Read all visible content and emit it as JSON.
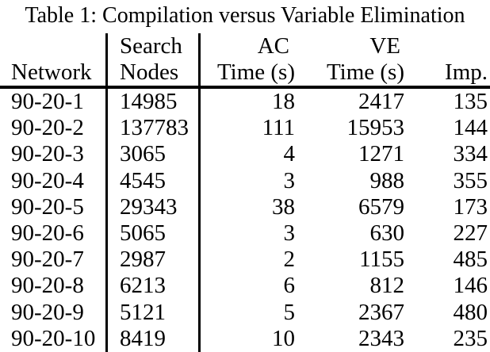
{
  "title": "Table 1: Compilation versus Variable Elimination",
  "colors": {
    "text": "#000000",
    "background": "#ffffff",
    "rule": "#000000"
  },
  "table": {
    "header": {
      "network_top": "",
      "network": "Network",
      "nodes_top": "Search",
      "nodes": "Nodes",
      "ac_top": "AC",
      "ac": "Time (s)",
      "ve_top": "VE",
      "ve": "Time (s)",
      "imp_top": "",
      "imp": "Imp."
    },
    "columns": [
      "Network",
      "Search Nodes",
      "AC Time (s)",
      "VE Time (s)",
      "Imp."
    ],
    "rows": [
      {
        "network": "90-20-1",
        "nodes": "14985",
        "ac": "18",
        "ve": "2417",
        "imp": "135"
      },
      {
        "network": "90-20-2",
        "nodes": "137783",
        "ac": "111",
        "ve": "15953",
        "imp": "144"
      },
      {
        "network": "90-20-3",
        "nodes": "3065",
        "ac": "4",
        "ve": "1271",
        "imp": "334"
      },
      {
        "network": "90-20-4",
        "nodes": "4545",
        "ac": "3",
        "ve": "988",
        "imp": "355"
      },
      {
        "network": "90-20-5",
        "nodes": "29343",
        "ac": "38",
        "ve": "6579",
        "imp": "173"
      },
      {
        "network": "90-20-6",
        "nodes": "5065",
        "ac": "3",
        "ve": "630",
        "imp": "227"
      },
      {
        "network": "90-20-7",
        "nodes": "2987",
        "ac": "2",
        "ve": "1155",
        "imp": "485"
      },
      {
        "network": "90-20-8",
        "nodes": "6213",
        "ac": "6",
        "ve": "812",
        "imp": "146"
      },
      {
        "network": "90-20-9",
        "nodes": "5121",
        "ac": "5",
        "ve": "2367",
        "imp": "480"
      },
      {
        "network": "90-20-10",
        "nodes": "8419",
        "ac": "10",
        "ve": "2343",
        "imp": "235"
      }
    ]
  }
}
